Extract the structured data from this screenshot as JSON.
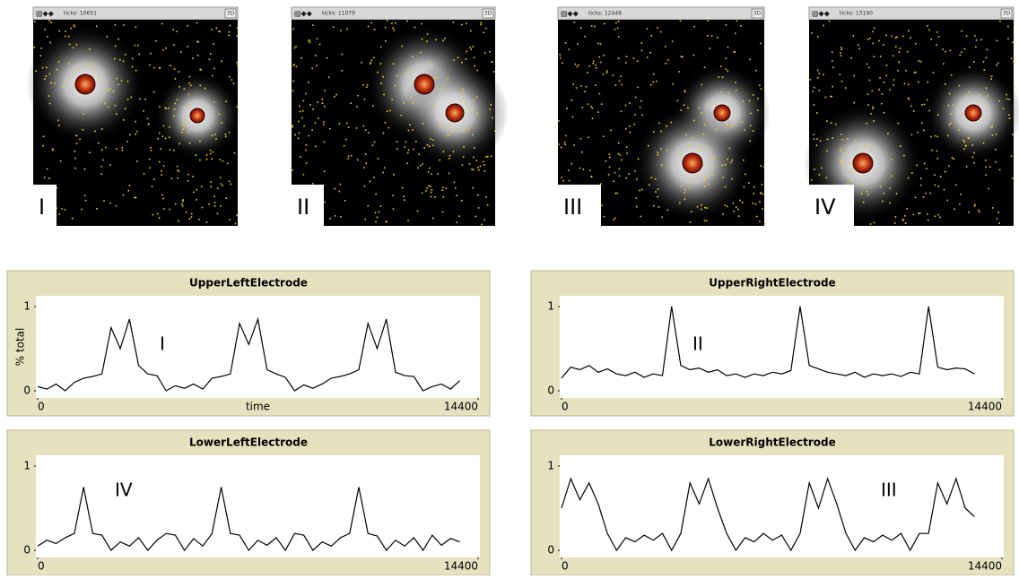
{
  "views": [
    {
      "ticks": "ticks: 10651",
      "button": "3D",
      "label": "I"
    },
    {
      "ticks": "ticks: 11079",
      "button": "3D",
      "label": "II"
    },
    {
      "ticks": "ticks: 12448",
      "button": "3D",
      "label": "III"
    },
    {
      "ticks": "ticks: 13190",
      "button": "3D",
      "label": "IV"
    }
  ],
  "chart_data": [
    {
      "type": "line",
      "title": "UpperLeftElectrode",
      "x_label": "time",
      "y_label": "% total",
      "annotation": "I",
      "xlim": [
        0,
        14400
      ],
      "ylim": [
        0,
        1
      ],
      "xticks": [
        0,
        14400
      ],
      "yticks": [
        0,
        1
      ],
      "x": [
        0,
        300,
        600,
        900,
        1200,
        1500,
        1800,
        2100,
        2400,
        2700,
        3000,
        3300,
        3600,
        3900,
        4200,
        4500,
        4800,
        5100,
        5400,
        5700,
        6000,
        6300,
        6600,
        6900,
        7200,
        7500,
        7800,
        8100,
        8400,
        8700,
        9000,
        9300,
        9600,
        9900,
        10200,
        10500,
        10800,
        11100,
        11400,
        11700,
        12000,
        12300,
        12600,
        12900,
        13200,
        13500,
        13800
      ],
      "series": [
        {
          "color": "#000000",
          "values": [
            0.05,
            0.02,
            0.08,
            0.0,
            0.1,
            0.15,
            0.17,
            0.2,
            0.75,
            0.5,
            0.85,
            0.3,
            0.2,
            0.18,
            0.0,
            0.06,
            0.03,
            0.08,
            0.02,
            0.15,
            0.17,
            0.2,
            0.8,
            0.55,
            0.85,
            0.25,
            0.2,
            0.16,
            0.0,
            0.07,
            0.03,
            0.08,
            0.15,
            0.17,
            0.2,
            0.25,
            0.8,
            0.5,
            0.85,
            0.22,
            0.18,
            0.17,
            0.0,
            0.05,
            0.08,
            0.02,
            0.12
          ]
        }
      ]
    },
    {
      "type": "line",
      "title": "UpperRightElectrode",
      "annotation": "II",
      "xlim": [
        0,
        14400
      ],
      "ylim": [
        0,
        1
      ],
      "xticks": [
        0,
        14400
      ],
      "yticks": [
        0,
        1
      ],
      "x": [
        0,
        300,
        600,
        900,
        1200,
        1500,
        1800,
        2100,
        2400,
        2700,
        3000,
        3300,
        3600,
        3900,
        4200,
        4500,
        4800,
        5100,
        5400,
        5700,
        6000,
        6300,
        6600,
        6900,
        7200,
        7500,
        7800,
        8100,
        8400,
        8700,
        9000,
        9300,
        9600,
        9900,
        10200,
        10500,
        10800,
        11100,
        11400,
        11700,
        12000,
        12300,
        12600,
        12900,
        13200,
        13500
      ],
      "series": [
        {
          "color": "#000000",
          "values": [
            0.15,
            0.28,
            0.25,
            0.3,
            0.22,
            0.26,
            0.2,
            0.18,
            0.22,
            0.16,
            0.2,
            0.18,
            1.0,
            0.3,
            0.25,
            0.27,
            0.22,
            0.25,
            0.18,
            0.2,
            0.16,
            0.2,
            0.18,
            0.22,
            0.2,
            0.24,
            1.0,
            0.3,
            0.26,
            0.22,
            0.2,
            0.18,
            0.22,
            0.16,
            0.2,
            0.18,
            0.2,
            0.17,
            0.22,
            0.2,
            1.0,
            0.28,
            0.25,
            0.27,
            0.26,
            0.2
          ]
        }
      ]
    },
    {
      "type": "line",
      "title": "LowerLeftElectrode",
      "annotation": "IV",
      "xlim": [
        0,
        14400
      ],
      "ylim": [
        0,
        1
      ],
      "xticks": [
        0,
        14400
      ],
      "yticks": [
        0,
        1
      ],
      "x": [
        0,
        300,
        600,
        900,
        1200,
        1500,
        1800,
        2100,
        2400,
        2700,
        3000,
        3300,
        3600,
        3900,
        4200,
        4500,
        4800,
        5100,
        5400,
        5700,
        6000,
        6300,
        6600,
        6900,
        7200,
        7500,
        7800,
        8100,
        8400,
        8700,
        9000,
        9300,
        9600,
        9900,
        10200,
        10500,
        10800,
        11100,
        11400,
        11700,
        12000,
        12300,
        12600,
        12900,
        13200,
        13500,
        13800
      ],
      "series": [
        {
          "color": "#000000",
          "values": [
            0.05,
            0.12,
            0.08,
            0.15,
            0.2,
            0.75,
            0.2,
            0.18,
            0.0,
            0.1,
            0.05,
            0.15,
            0.0,
            0.12,
            0.2,
            0.18,
            0.0,
            0.14,
            0.05,
            0.2,
            0.75,
            0.2,
            0.18,
            0.0,
            0.12,
            0.06,
            0.15,
            0.0,
            0.2,
            0.18,
            0.0,
            0.1,
            0.05,
            0.15,
            0.2,
            0.75,
            0.2,
            0.17,
            0.0,
            0.12,
            0.05,
            0.15,
            0.0,
            0.18,
            0.06,
            0.14,
            0.1
          ]
        }
      ]
    },
    {
      "type": "line",
      "title": "LowerRightElectrode",
      "annotation": "III",
      "xlim": [
        0,
        14400
      ],
      "ylim": [
        0,
        1
      ],
      "xticks": [
        0,
        14400
      ],
      "yticks": [
        0,
        1
      ],
      "x": [
        0,
        300,
        600,
        900,
        1200,
        1500,
        1800,
        2100,
        2400,
        2700,
        3000,
        3300,
        3600,
        3900,
        4200,
        4500,
        4800,
        5100,
        5400,
        5700,
        6000,
        6300,
        6600,
        6900,
        7200,
        7500,
        7800,
        8100,
        8400,
        8700,
        9000,
        9300,
        9600,
        9900,
        10200,
        10500,
        10800,
        11100,
        11400,
        11700,
        12000,
        12300,
        12600,
        12900,
        13200,
        13500
      ],
      "series": [
        {
          "color": "#000000",
          "values": [
            0.5,
            0.85,
            0.6,
            0.8,
            0.55,
            0.2,
            0.0,
            0.15,
            0.1,
            0.18,
            0.12,
            0.2,
            0.0,
            0.2,
            0.8,
            0.55,
            0.85,
            0.5,
            0.2,
            0.0,
            0.15,
            0.1,
            0.2,
            0.12,
            0.18,
            0.0,
            0.2,
            0.8,
            0.5,
            0.85,
            0.55,
            0.2,
            0.0,
            0.15,
            0.1,
            0.18,
            0.12,
            0.2,
            0.0,
            0.2,
            0.2,
            0.8,
            0.55,
            0.85,
            0.5,
            0.4
          ]
        }
      ]
    }
  ]
}
